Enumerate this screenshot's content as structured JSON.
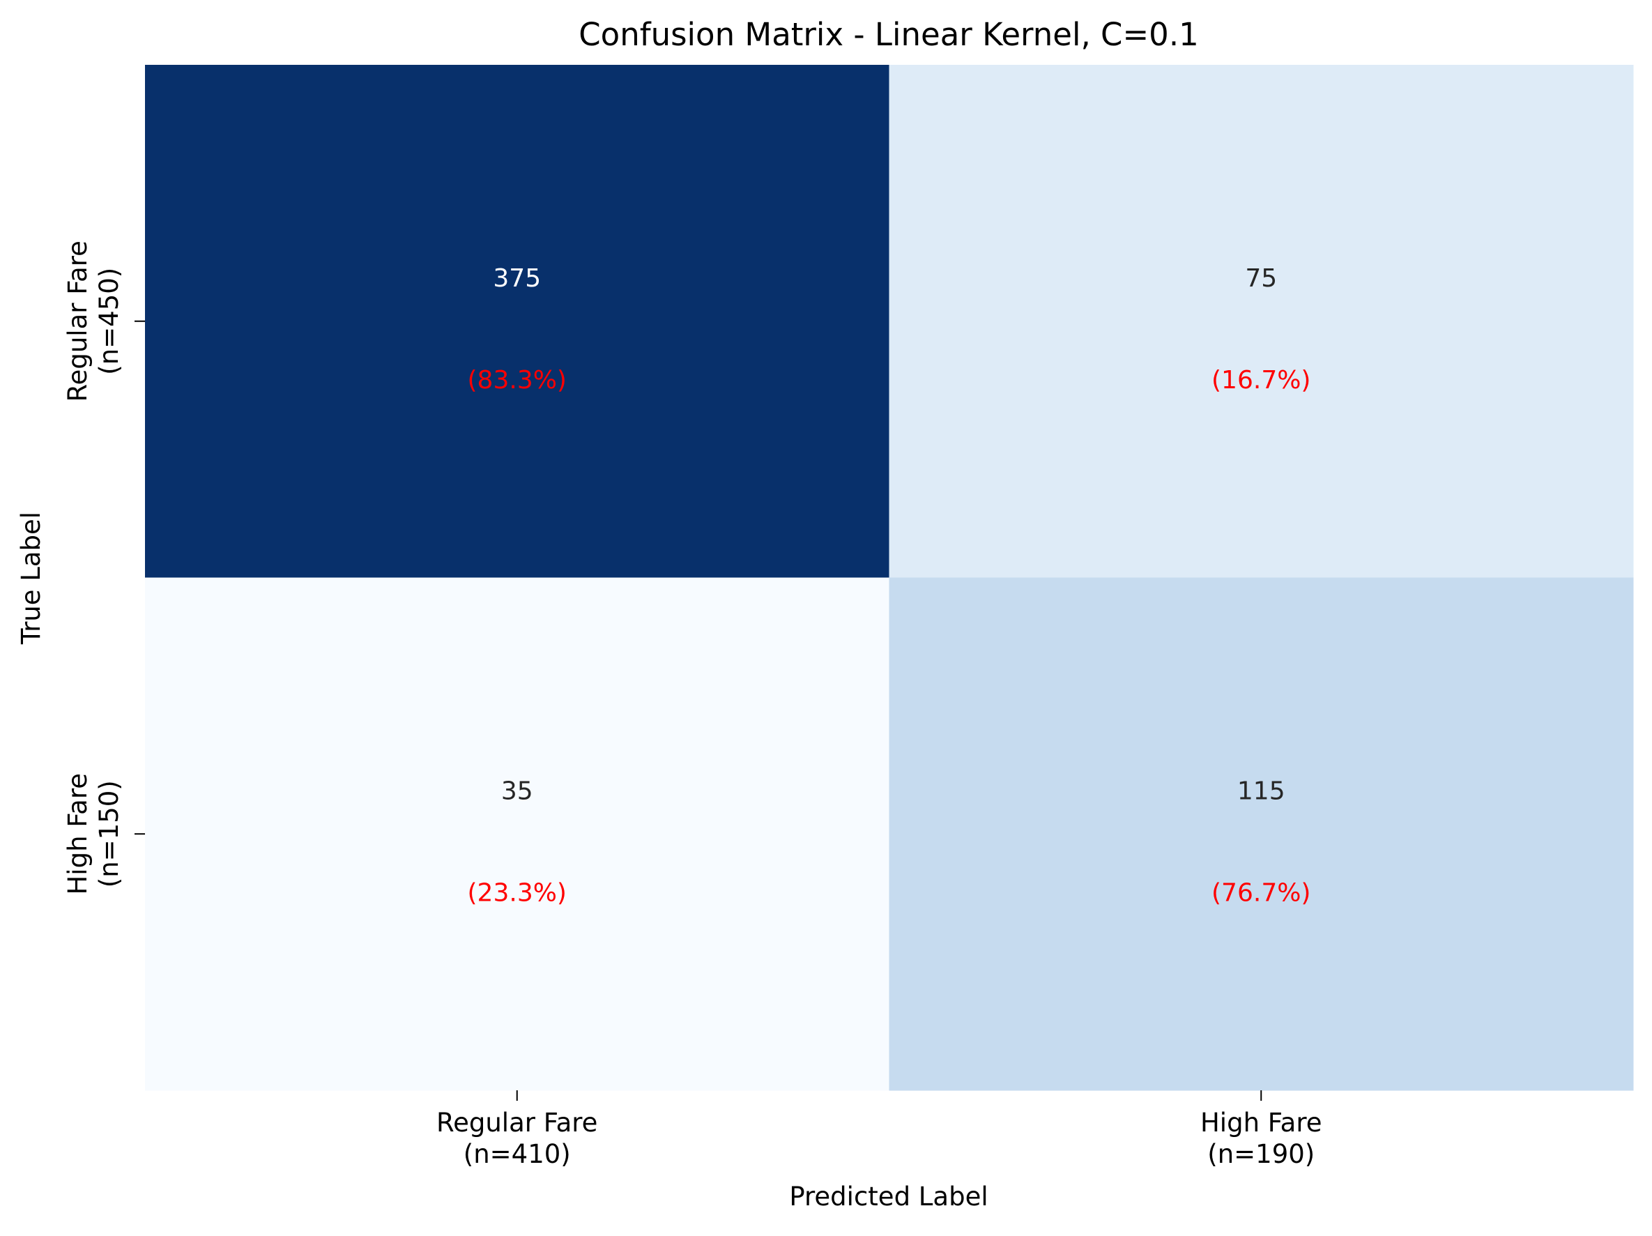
{
  "chart_data": {
    "type": "heatmap",
    "title": "Confusion Matrix - Linear Kernel, C=0.1",
    "xlabel": "Predicted Label",
    "ylabel": "True Label",
    "x_tick_labels": [
      [
        "Regular Fare",
        "(n=410)"
      ],
      [
        "High Fare",
        "(n=190)"
      ]
    ],
    "y_tick_labels": [
      [
        "Regular Fare",
        "(n=450)"
      ],
      [
        "High Fare",
        "(n=150)"
      ]
    ],
    "matrix": [
      [
        375,
        75
      ],
      [
        35,
        115
      ]
    ],
    "matrix_text": [
      [
        "375",
        "75"
      ],
      [
        "35",
        "115"
      ]
    ],
    "percent_labels": [
      [
        "(83.3%)",
        "(16.7%)"
      ],
      [
        "(23.3%)",
        "(76.7%)"
      ]
    ],
    "colormap": "Blues",
    "colorbar": false,
    "cell_colors": [
      [
        "#08306b",
        "#deebf7"
      ],
      [
        "#f7fbff",
        "#c6dbef"
      ]
    ],
    "count_text_colors": [
      [
        "#ffffff",
        "#262626"
      ],
      [
        "#262626",
        "#262626"
      ]
    ],
    "percent_color": "#ff0000"
  }
}
